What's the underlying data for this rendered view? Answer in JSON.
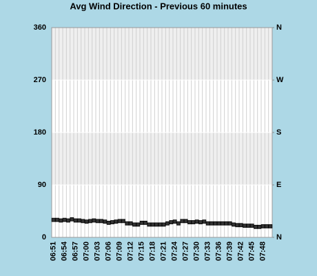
{
  "chart_data": {
    "type": "scatter",
    "title": "Avg Wind Direction - Previous 60 minutes",
    "categories": [
      "06:51",
      null,
      null,
      "06:54",
      null,
      null,
      "06:57",
      null,
      null,
      "07:00",
      null,
      null,
      "07:03",
      null,
      null,
      "07:06",
      null,
      null,
      "07:09",
      null,
      null,
      "07:12",
      null,
      null,
      "07:15",
      null,
      null,
      "07:18",
      null,
      null,
      "07:21",
      null,
      null,
      "07:24",
      null,
      null,
      "07:27",
      null,
      null,
      "07:30",
      null,
      null,
      "07:33",
      null,
      null,
      "07:36",
      null,
      null,
      "07:39",
      null,
      null,
      "07:42",
      null,
      null,
      "07:45",
      null,
      null,
      "07:48",
      null,
      null
    ],
    "values": [
      30,
      30,
      29,
      30,
      29,
      31,
      29,
      29,
      28,
      27,
      28,
      29,
      28,
      28,
      27,
      25,
      26,
      27,
      28,
      28,
      24,
      24,
      22,
      22,
      25,
      25,
      22,
      22,
      22,
      22,
      22,
      24,
      26,
      27,
      24,
      28,
      28,
      26,
      26,
      27,
      26,
      27,
      24,
      24,
      24,
      24,
      24,
      24,
      24,
      22,
      21,
      21,
      20,
      20,
      20,
      18,
      18,
      19,
      19,
      19
    ],
    "color": "#333333",
    "ylim": [
      0,
      360
    ],
    "yticks": [
      0,
      90,
      180,
      270,
      360
    ],
    "y2lim": [
      0,
      360
    ],
    "y2ticks": [
      {
        "value": 0,
        "label": "N"
      },
      {
        "value": 90,
        "label": "E"
      },
      {
        "value": 180,
        "label": "S"
      },
      {
        "value": 270,
        "label": "W"
      },
      {
        "value": 360,
        "label": "N"
      }
    ],
    "grid": true
  }
}
